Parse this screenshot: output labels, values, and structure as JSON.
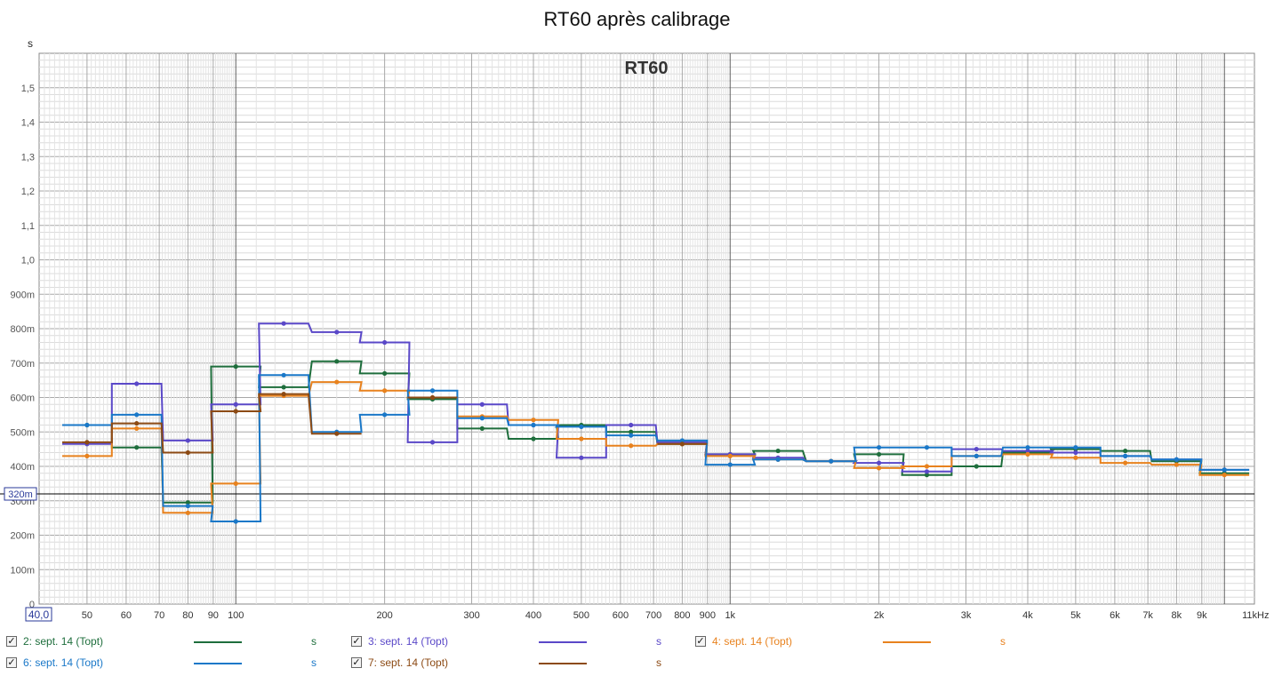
{
  "page_title": "RT60 après calibrage",
  "legend": [
    {
      "label": "2: sept. 14 (Topt)",
      "unit": "s",
      "color": "#1e6e3c",
      "checked": true
    },
    {
      "label": "3: sept. 14 (Topt)",
      "unit": "s",
      "color": "#5a48c8",
      "checked": true
    },
    {
      "label": "4: sept. 14 (Topt)",
      "unit": "s",
      "color": "#e8821e",
      "checked": true
    },
    {
      "label": "6: sept. 14 (Topt)",
      "unit": "s",
      "color": "#1a78c8",
      "checked": true
    },
    {
      "label": "7: sept. 14 (Topt)",
      "unit": "s",
      "color": "#8c4a14",
      "checked": true
    }
  ],
  "chart_data": {
    "type": "line",
    "title": "RT60",
    "ylabel": "s",
    "xunit": "kHz",
    "xscale": "log",
    "xlim": [
      40,
      11500
    ],
    "ylim": [
      0,
      1.6
    ],
    "x_start_label": "40,0",
    "cursor_value": 0.32,
    "cursor_label": "320m",
    "grid": true,
    "x_tick_values": [
      50,
      60,
      70,
      80,
      90,
      100,
      200,
      300,
      400,
      500,
      600,
      700,
      800,
      900,
      1000,
      2000,
      3000,
      4000,
      5000,
      6000,
      7000,
      8000,
      9000,
      11000
    ],
    "x_tick_labels": [
      "50",
      "60",
      "70",
      "80",
      "90",
      "100",
      "200",
      "300",
      "400",
      "500",
      "600",
      "700",
      "800",
      "900",
      "1k",
      "2k",
      "3k",
      "4k",
      "5k",
      "6k",
      "7k",
      "8k",
      "9k",
      "11kHz"
    ],
    "y_tick_values": [
      0,
      0.1,
      0.2,
      0.3,
      0.4,
      0.5,
      0.6,
      0.7,
      0.8,
      0.9,
      1.0,
      1.1,
      1.2,
      1.3,
      1.4,
      1.5
    ],
    "y_tick_labels": [
      "0",
      "100m",
      "200m",
      "300m",
      "400m",
      "500m",
      "600m",
      "700m",
      "800m",
      "900m",
      "1,0",
      "1,1",
      "1,2",
      "1,3",
      "1,4",
      "1,5"
    ],
    "x": [
      50,
      63,
      80,
      100,
      125,
      160,
      200,
      250,
      315,
      400,
      500,
      630,
      800,
      1000,
      1250,
      1600,
      2000,
      2500,
      3150,
      4000,
      5000,
      6300,
      8000,
      10000
    ],
    "series": [
      {
        "name": "2: sept. 14 (Topt)",
        "color": "#1e6e3c",
        "values": [
          0.52,
          0.455,
          0.295,
          0.69,
          0.63,
          0.705,
          0.67,
          0.595,
          0.51,
          0.48,
          0.52,
          0.5,
          0.465,
          0.435,
          0.445,
          0.415,
          0.435,
          0.375,
          0.4,
          0.44,
          0.45,
          0.445,
          0.415,
          0.38
        ]
      },
      {
        "name": "3: sept. 14 (Topt)",
        "color": "#5a48c8",
        "values": [
          0.465,
          0.64,
          0.475,
          0.58,
          0.815,
          0.79,
          0.76,
          0.47,
          0.58,
          0.52,
          0.425,
          0.52,
          0.47,
          0.435,
          0.425,
          0.415,
          0.41,
          0.385,
          0.45,
          0.445,
          0.44,
          0.43,
          0.42,
          0.39
        ]
      },
      {
        "name": "4: sept. 14 (Topt)",
        "color": "#e8821e",
        "values": [
          0.43,
          0.51,
          0.265,
          0.35,
          0.605,
          0.645,
          0.62,
          0.6,
          0.545,
          0.535,
          0.48,
          0.46,
          0.465,
          0.43,
          0.42,
          0.415,
          0.395,
          0.4,
          0.43,
          0.435,
          0.425,
          0.41,
          0.405,
          0.375
        ]
      },
      {
        "name": "6: sept. 14 (Topt)",
        "color": "#1a78c8",
        "values": [
          0.52,
          0.55,
          0.285,
          0.24,
          0.665,
          0.5,
          0.55,
          0.62,
          0.54,
          0.52,
          0.515,
          0.49,
          0.475,
          0.405,
          0.42,
          0.415,
          0.455,
          0.455,
          0.43,
          0.455,
          0.455,
          0.43,
          0.42,
          0.39
        ]
      },
      {
        "name": "7: sept. 14 (Topt)",
        "color": "#8c4a14",
        "values": [
          0.47,
          0.525,
          0.44,
          0.56,
          0.61,
          0.495,
          null,
          0.6,
          null,
          null,
          null,
          null,
          0.465,
          null,
          null,
          null,
          null,
          null,
          null,
          null,
          null,
          null,
          null,
          null
        ]
      }
    ]
  }
}
